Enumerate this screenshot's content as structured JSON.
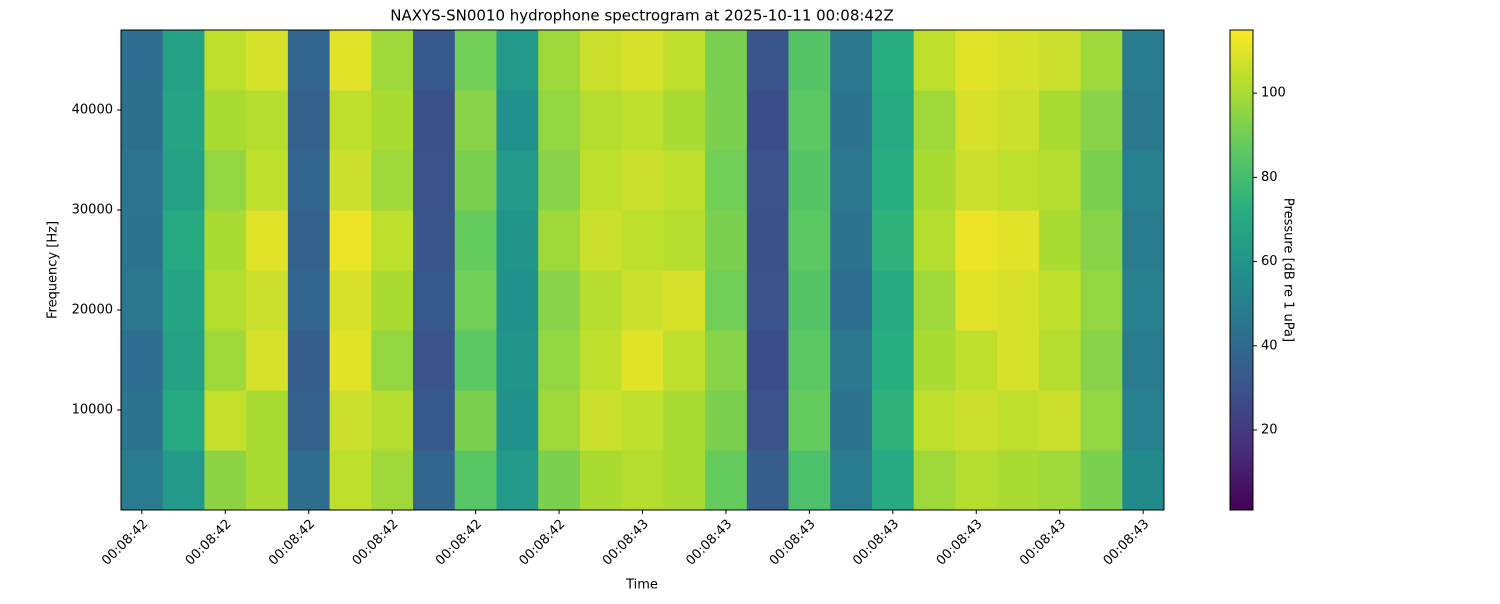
{
  "chart_data": {
    "type": "heatmap",
    "title": "NAXYS-SN0010 hydrophone spectrogram at 2025-10-11 00:08:42Z",
    "xlabel": "Time",
    "ylabel": "Frequency [Hz]",
    "colorbar_label": "Pressure [dB re 1 uPa]",
    "colormap": "viridis",
    "x": [
      42.4,
      42.45,
      42.5,
      42.55,
      42.6,
      42.65,
      42.7,
      42.75,
      42.8,
      42.85,
      42.9,
      42.95,
      43.0,
      43.05,
      43.1,
      43.15,
      43.2,
      43.25,
      43.3,
      43.35,
      43.4,
      43.45,
      43.5,
      43.55,
      43.6
    ],
    "y": [
      3000,
      9000,
      15000,
      21000,
      27000,
      33000,
      39000,
      45000
    ],
    "z": [
      [
        48,
        62,
        95,
        100,
        42,
        104,
        98,
        38,
        85,
        62,
        92,
        100,
        102,
        100,
        88,
        35,
        82,
        48,
        70,
        98,
        102,
        100,
        98,
        92,
        55
      ],
      [
        44,
        70,
        105,
        100,
        36,
        106,
        102,
        32,
        92,
        58,
        98,
        106,
        104,
        100,
        92,
        30,
        88,
        44,
        74,
        104,
        106,
        104,
        106,
        96,
        50
      ],
      [
        42,
        66,
        98,
        108,
        35,
        110,
        96,
        30,
        86,
        60,
        96,
        104,
        110,
        104,
        94,
        28,
        86,
        46,
        72,
        100,
        104,
        108,
        102,
        94,
        48
      ],
      [
        46,
        68,
        102,
        106,
        38,
        108,
        100,
        32,
        90,
        58,
        94,
        102,
        106,
        108,
        90,
        30,
        84,
        42,
        70,
        98,
        110,
        108,
        104,
        96,
        50
      ],
      [
        44,
        70,
        100,
        110,
        36,
        112,
        104,
        31,
        88,
        60,
        98,
        106,
        104,
        102,
        92,
        29,
        86,
        44,
        74,
        102,
        112,
        110,
        100,
        94,
        48
      ],
      [
        45,
        66,
        96,
        104,
        38,
        106,
        98,
        30,
        92,
        62,
        94,
        104,
        106,
        104,
        90,
        30,
        84,
        46,
        72,
        100,
        106,
        104,
        102,
        92,
        50
      ],
      [
        43,
        68,
        100,
        102,
        36,
        104,
        100,
        29,
        94,
        58,
        96,
        102,
        104,
        100,
        92,
        28,
        86,
        44,
        70,
        98,
        108,
        106,
        100,
        94,
        46
      ],
      [
        42,
        66,
        104,
        108,
        38,
        110,
        98,
        32,
        90,
        62,
        98,
        106,
        108,
        104,
        92,
        31,
        84,
        46,
        72,
        104,
        110,
        108,
        106,
        98,
        48
      ]
    ],
    "xlim": [
      42.375,
      43.625
    ],
    "ylim": [
      0,
      48000
    ],
    "clim": [
      1,
      115
    ],
    "xticks": [
      {
        "value": 42.4,
        "label": "00:08:42"
      },
      {
        "value": 42.5,
        "label": "00:08:42"
      },
      {
        "value": 42.6,
        "label": "00:08:42"
      },
      {
        "value": 42.7,
        "label": "00:08:42"
      },
      {
        "value": 42.8,
        "label": "00:08:42"
      },
      {
        "value": 42.9,
        "label": "00:08:42"
      },
      {
        "value": 43.0,
        "label": "00:08:43"
      },
      {
        "value": 43.1,
        "label": "00:08:43"
      },
      {
        "value": 43.2,
        "label": "00:08:43"
      },
      {
        "value": 43.3,
        "label": "00:08:43"
      },
      {
        "value": 43.4,
        "label": "00:08:43"
      },
      {
        "value": 43.5,
        "label": "00:08:43"
      },
      {
        "value": 43.6,
        "label": "00:08:43"
      }
    ],
    "yticks": [
      10000,
      20000,
      30000,
      40000
    ],
    "cticks": [
      20,
      40,
      60,
      80,
      100
    ]
  }
}
